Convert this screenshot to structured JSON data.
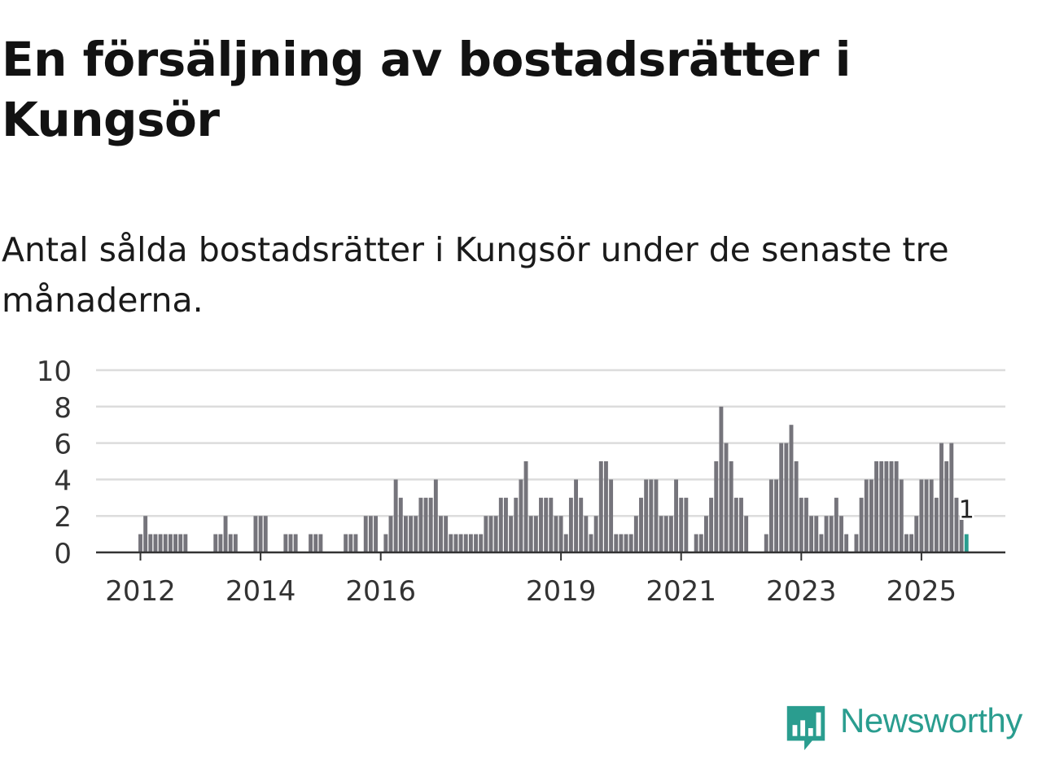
{
  "title": "En försäljning av bostadsrätter i Kungsör",
  "subtitle": "Antal sålda bostadsrätter i Kungsör under de senaste tre månaderna.",
  "logo": {
    "text": "Newsworthy",
    "color": "#2a9d8f"
  },
  "colors": {
    "bar": "#75747b",
    "highlight": "#2a9d8f",
    "grid": "#dcdcdc",
    "axis": "#333333"
  },
  "chart_data": {
    "type": "bar",
    "title": "Antal sålda bostadsrätter i Kungsör",
    "xlabel": "",
    "ylabel": "",
    "ylim": [
      0,
      10
    ],
    "y_ticks": [
      "0",
      "2",
      "4",
      "6",
      "8",
      "10"
    ],
    "x_tick_labels": [
      {
        "label": "2012",
        "index": 0
      },
      {
        "label": "2014",
        "index": 24
      },
      {
        "label": "2016",
        "index": 48
      },
      {
        "label": "2019",
        "index": 84
      },
      {
        "label": "2021",
        "index": 108
      },
      {
        "label": "2023",
        "index": 132
      },
      {
        "label": "2025",
        "index": 156
      }
    ],
    "start_month": "2012-01",
    "values": [
      1,
      2,
      1,
      1,
      1,
      1,
      1,
      1,
      1,
      1,
      0,
      0,
      0,
      0,
      0,
      1,
      1,
      2,
      1,
      1,
      0,
      0,
      0,
      2,
      2,
      2,
      0,
      0,
      0,
      1,
      1,
      1,
      0,
      0,
      1,
      1,
      1,
      0,
      0,
      0,
      0,
      1,
      1,
      1,
      0,
      2,
      2,
      2,
      0,
      1,
      2,
      4,
      3,
      2,
      2,
      2,
      3,
      3,
      3,
      4,
      2,
      2,
      1,
      1,
      1,
      1,
      1,
      1,
      1,
      2,
      2,
      2,
      3,
      3,
      2,
      3,
      4,
      5,
      2,
      2,
      3,
      3,
      3,
      2,
      2,
      1,
      3,
      4,
      3,
      2,
      1,
      2,
      5,
      5,
      4,
      1,
      1,
      1,
      1,
      2,
      3,
      4,
      4,
      4,
      2,
      2,
      2,
      4,
      3,
      3,
      0,
      1,
      1,
      2,
      3,
      5,
      8,
      6,
      5,
      3,
      3,
      2,
      0,
      0,
      0,
      1,
      4,
      4,
      6,
      6,
      7,
      5,
      3,
      3,
      2,
      2,
      1,
      2,
      2,
      3,
      2,
      1,
      0,
      1,
      3,
      4,
      4,
      5,
      5,
      5,
      5,
      5,
      4,
      1,
      1,
      2,
      4,
      4,
      4,
      3,
      6,
      5,
      6,
      3,
      2,
      1
    ],
    "highlight_index": 165,
    "annotation": "1"
  }
}
